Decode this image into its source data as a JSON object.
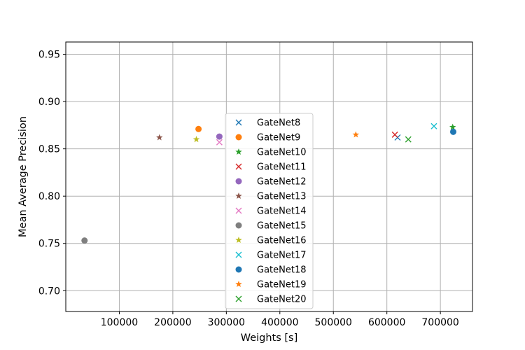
{
  "chart_data": {
    "type": "scatter",
    "title": "",
    "xlabel": "Weights [s]",
    "ylabel": "Mean Average Precision",
    "xlim": [
      0,
      760000
    ],
    "ylim": [
      0.678,
      0.963
    ],
    "xticks": [
      100000,
      200000,
      300000,
      400000,
      500000,
      600000,
      700000
    ],
    "xtick_labels": [
      "100000",
      "200000",
      "300000",
      "400000",
      "500000",
      "600000",
      "700000"
    ],
    "yticks": [
      0.7,
      0.75,
      0.8,
      0.85,
      0.9,
      0.95
    ],
    "ytick_labels": [
      "0.70",
      "0.75",
      "0.80",
      "0.85",
      "0.90",
      "0.95"
    ],
    "grid": true,
    "legend_position": "center",
    "series": [
      {
        "name": "GateNet8",
        "marker": "x",
        "color": "#1f77b4",
        "points": [
          [
            620000,
            0.862
          ]
        ]
      },
      {
        "name": "GateNet9",
        "marker": "o",
        "color": "#ff7f0e",
        "points": [
          [
            248000,
            0.871
          ]
        ]
      },
      {
        "name": "GateNet10",
        "marker": "star",
        "color": "#2ca02c",
        "points": [
          [
            723000,
            0.873
          ]
        ]
      },
      {
        "name": "GateNet11",
        "marker": "x",
        "color": "#d62728",
        "points": [
          [
            615000,
            0.865
          ]
        ]
      },
      {
        "name": "GateNet12",
        "marker": "o",
        "color": "#9467bd",
        "points": [
          [
            287000,
            0.863
          ]
        ]
      },
      {
        "name": "GateNet13",
        "marker": "star",
        "color": "#8c564b",
        "points": [
          [
            175000,
            0.862
          ]
        ]
      },
      {
        "name": "GateNet14",
        "marker": "x",
        "color": "#e377c2",
        "points": [
          [
            287000,
            0.857
          ]
        ]
      },
      {
        "name": "GateNet15",
        "marker": "o",
        "color": "#7f7f7f",
        "points": [
          [
            35000,
            0.753
          ]
        ]
      },
      {
        "name": "GateNet16",
        "marker": "star",
        "color": "#bcbd22",
        "points": [
          [
            244000,
            0.86
          ]
        ]
      },
      {
        "name": "GateNet17",
        "marker": "x",
        "color": "#17becf",
        "points": [
          [
            688000,
            0.874
          ]
        ]
      },
      {
        "name": "GateNet18",
        "marker": "o",
        "color": "#1f77b4",
        "points": [
          [
            724000,
            0.868
          ]
        ]
      },
      {
        "name": "GateNet19",
        "marker": "star",
        "color": "#ff7f0e",
        "points": [
          [
            542000,
            0.865
          ]
        ]
      },
      {
        "name": "GateNet20",
        "marker": "x",
        "color": "#2ca02c",
        "points": [
          [
            640000,
            0.86
          ]
        ]
      }
    ]
  }
}
